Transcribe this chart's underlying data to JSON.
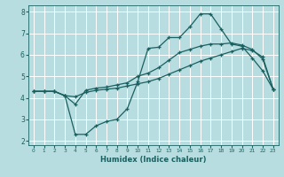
{
  "xlabel": "Humidex (Indice chaleur)",
  "background_color": "#b8dde0",
  "grid_color": "#ffffff",
  "line_color": "#1a6060",
  "xlim": [
    -0.5,
    23.5
  ],
  "ylim": [
    1.8,
    8.3
  ],
  "yticks": [
    2,
    3,
    4,
    5,
    6,
    7,
    8
  ],
  "xticks": [
    0,
    1,
    2,
    3,
    4,
    5,
    6,
    7,
    8,
    9,
    10,
    11,
    12,
    13,
    14,
    15,
    16,
    17,
    18,
    19,
    20,
    21,
    22,
    23
  ],
  "line1_x": [
    0,
    1,
    2,
    3,
    4,
    5,
    6,
    7,
    8,
    9,
    10,
    11,
    12,
    13,
    14,
    15,
    16,
    17,
    18,
    19,
    20,
    21,
    22,
    23
  ],
  "line1_y": [
    4.3,
    4.3,
    4.3,
    4.1,
    2.3,
    2.3,
    2.7,
    2.9,
    3.0,
    3.5,
    4.75,
    6.3,
    6.35,
    6.8,
    6.8,
    7.3,
    7.9,
    7.9,
    7.2,
    6.5,
    6.4,
    5.85,
    5.25,
    4.4
  ],
  "line2_x": [
    0,
    1,
    2,
    3,
    4,
    5,
    6,
    7,
    8,
    9,
    10,
    11,
    12,
    13,
    14,
    15,
    16,
    17,
    18,
    19,
    20,
    21,
    22,
    23
  ],
  "line2_y": [
    4.3,
    4.3,
    4.3,
    4.1,
    4.05,
    4.25,
    4.35,
    4.4,
    4.45,
    4.55,
    4.65,
    4.75,
    4.9,
    5.1,
    5.3,
    5.5,
    5.7,
    5.85,
    6.0,
    6.15,
    6.3,
    6.2,
    5.9,
    4.4
  ],
  "line3_x": [
    0,
    1,
    2,
    3,
    4,
    5,
    6,
    7,
    8,
    9,
    10,
    11,
    12,
    13,
    14,
    15,
    16,
    17,
    18,
    19,
    20,
    21,
    22,
    23
  ],
  "line3_y": [
    4.3,
    4.3,
    4.3,
    4.1,
    3.7,
    4.35,
    4.45,
    4.5,
    4.6,
    4.7,
    5.0,
    5.15,
    5.4,
    5.75,
    6.1,
    6.25,
    6.4,
    6.5,
    6.5,
    6.55,
    6.45,
    6.25,
    5.8,
    4.4
  ]
}
